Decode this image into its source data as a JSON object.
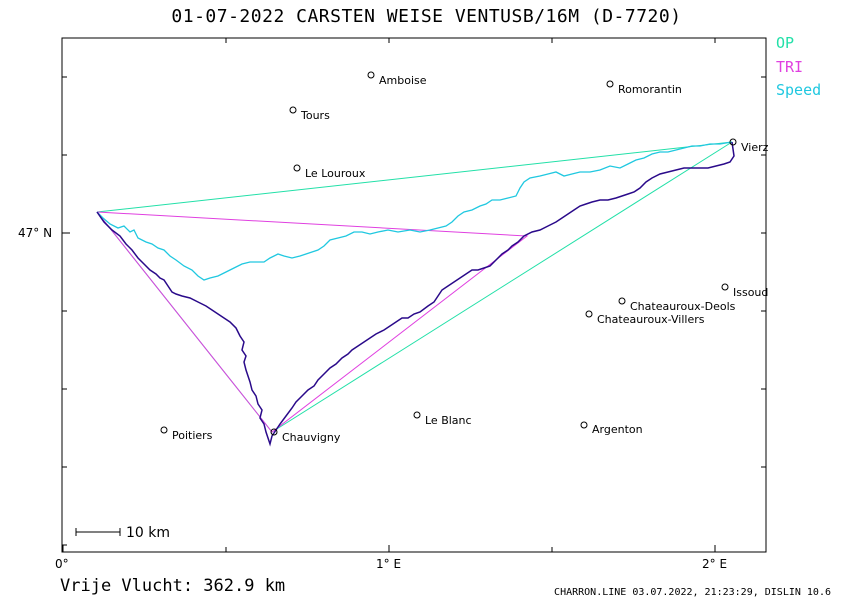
{
  "header": {
    "title": "01-07-2022   CARSTEN WEISE   VENTUSB/16M (D-7720)"
  },
  "legend": {
    "items": [
      {
        "label": "OP",
        "color": "#22e0a8"
      },
      {
        "label": "TRI",
        "color": "#e040e0"
      },
      {
        "label": "Speed",
        "color": "#20c8e0"
      }
    ]
  },
  "axes": {
    "lat_label": "47° N",
    "lon_labels": [
      "0°",
      "1° E",
      "2° E"
    ]
  },
  "scale_bar": {
    "label": "10  km"
  },
  "places": [
    {
      "name": "Amboise"
    },
    {
      "name": "Romorantin"
    },
    {
      "name": "Tours"
    },
    {
      "name": "Vierz"
    },
    {
      "name": "Le Louroux"
    },
    {
      "name": "Issoud"
    },
    {
      "name": "Chateauroux-Deols"
    },
    {
      "name": "Chateauroux-Villers"
    },
    {
      "name": "Le Blanc"
    },
    {
      "name": "Poitiers"
    },
    {
      "name": "Chauvigny"
    },
    {
      "name": "Argenton"
    }
  ],
  "footer": {
    "distance_label": "Vrije Vlucht:  362.9 km",
    "credits": "CHARRON.LINE 03.07.2022, 21:23:29, DISLIN 10.6"
  },
  "colors": {
    "track": "#2a0a8a",
    "track_cyan": "#20c8e0",
    "op": "#22e0a8",
    "tri": "#e040e0"
  }
}
